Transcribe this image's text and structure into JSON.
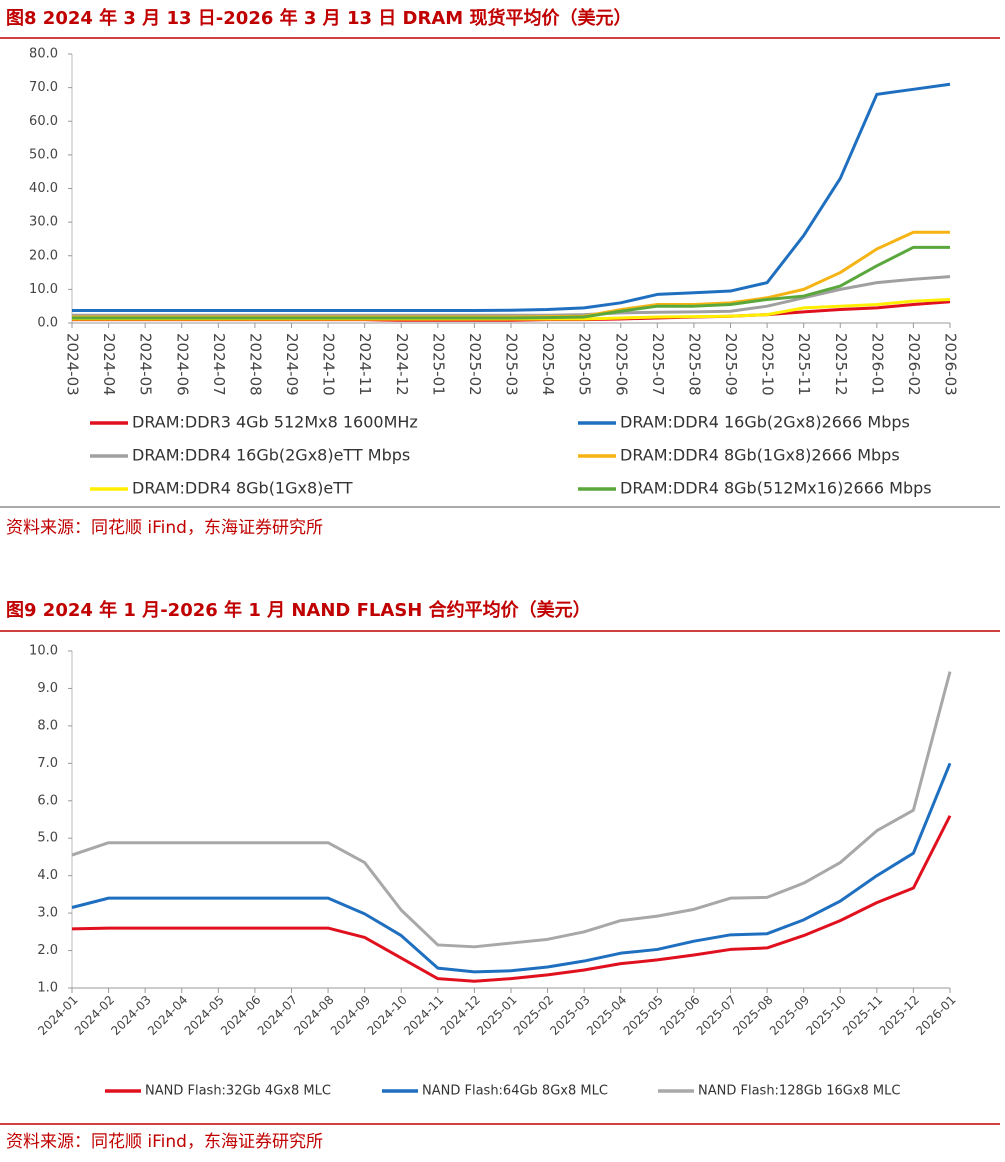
{
  "chart_data": [
    {
      "type": "line",
      "title": "图8  2024 年 3 月 13 日-2026 年 3 月 13 日 DRAM 现货平均价（美元）",
      "source": "资料来源：同花顺 iFind，东海证券研究所",
      "categories": [
        "2024-03",
        "2024-04",
        "2024-05",
        "2024-06",
        "2024-07",
        "2024-08",
        "2024-09",
        "2024-10",
        "2024-11",
        "2024-12",
        "2025-01",
        "2025-02",
        "2025-03",
        "2025-04",
        "2025-05",
        "2025-06",
        "2025-07",
        "2025-08",
        "2025-09",
        "2025-10",
        "2025-11",
        "2025-12",
        "2026-01",
        "2026-02",
        "2026-03"
      ],
      "ylim": [
        0,
        80
      ],
      "yticks": [
        {
          "value": 0,
          "label": "0.0"
        },
        {
          "value": 10,
          "label": "10.0"
        },
        {
          "value": 20,
          "label": "20.0"
        },
        {
          "value": 30,
          "label": "30.0"
        },
        {
          "value": 40,
          "label": "40.0"
        },
        {
          "value": 50,
          "label": "50.0"
        },
        {
          "value": 60,
          "label": "60.0"
        },
        {
          "value": 70,
          "label": "70.0"
        },
        {
          "value": 80,
          "label": "80.0"
        }
      ],
      "series": [
        {
          "name": "DRAM:DDR3 4Gb 512Mx8 1600MHz",
          "color": "#e0101e",
          "values": [
            1,
            1,
            1,
            1,
            1,
            1,
            1,
            1,
            1,
            0.8,
            0.8,
            0.8,
            0.8,
            1,
            1,
            1.2,
            1.5,
            1.8,
            2,
            2.5,
            3.3,
            4,
            4.5,
            5.5,
            6.3
          ]
        },
        {
          "name": "DRAM:DDR4 16Gb(2Gx8)2666 Mbps",
          "color": "#1f6fc0",
          "values": [
            3.7,
            3.7,
            3.7,
            3.7,
            3.7,
            3.7,
            3.7,
            3.7,
            3.7,
            3.7,
            3.7,
            3.7,
            3.8,
            4,
            4.5,
            6,
            8.5,
            9,
            9.5,
            12,
            26,
            43,
            68,
            69.5,
            71
          ]
        },
        {
          "name": "DRAM:DDR4 16Gb(2Gx8)eTT Mbps",
          "color": "#a0a0a0",
          "values": [
            2.3,
            2.3,
            2.3,
            2.3,
            2.3,
            2.3,
            2.3,
            2.3,
            2.3,
            2.3,
            2.3,
            2.3,
            2.3,
            2.3,
            2.5,
            3,
            3.2,
            3.3,
            3.5,
            5,
            7.5,
            10,
            12,
            13,
            13.8
          ]
        },
        {
          "name": "DRAM:DDR4 8Gb(1Gx8)2666 Mbps",
          "color": "#f5b414",
          "values": [
            1.8,
            1.8,
            1.8,
            1.8,
            1.8,
            1.8,
            1.8,
            1.8,
            1.8,
            1.8,
            1.8,
            1.8,
            1.8,
            1.9,
            2,
            4,
            5.5,
            5.5,
            6,
            7.5,
            10,
            15,
            22,
            27,
            27
          ]
        },
        {
          "name": "DRAM:DDR4 8Gb(1Gx8)eTT",
          "color": "#ffee00",
          "values": [
            1.2,
            1.2,
            1.2,
            1.2,
            1.2,
            1.2,
            1.2,
            1.2,
            1.2,
            1.2,
            1.2,
            1.2,
            1.2,
            1.2,
            1.2,
            1.5,
            1.8,
            1.9,
            2,
            2.5,
            4.5,
            5,
            5.5,
            6.5,
            7
          ]
        },
        {
          "name": "DRAM:DDR4 8Gb(512Mx16)2666 Mbps",
          "color": "#5aa83c",
          "values": [
            1.5,
            1.5,
            1.5,
            1.5,
            1.5,
            1.5,
            1.5,
            1.5,
            1.5,
            1.5,
            1.5,
            1.5,
            1.5,
            1.6,
            1.8,
            3.5,
            5,
            5,
            5.5,
            7,
            8,
            11,
            17,
            22.5,
            22.5
          ]
        }
      ]
    },
    {
      "type": "line",
      "title": "图9  2024 年 1 月-2026 年 1 月 NAND FLASH 合约平均价（美元）",
      "source": "资料来源：同花顺 iFind，东海证券研究所",
      "categories": [
        "2024-01",
        "2024-02",
        "2024-03",
        "2024-04",
        "2024-05",
        "2024-06",
        "2024-07",
        "2024-08",
        "2024-09",
        "2024-10",
        "2024-11",
        "2024-12",
        "2025-01",
        "2025-02",
        "2025-03",
        "2025-04",
        "2025-05",
        "2025-06",
        "2025-07",
        "2025-08",
        "2025-09",
        "2025-10",
        "2025-11",
        "2025-12",
        "2026-01"
      ],
      "ylim": [
        1,
        10
      ],
      "yticks": [
        {
          "value": 1,
          "label": "1.0"
        },
        {
          "value": 2,
          "label": "2.0"
        },
        {
          "value": 3,
          "label": "3.0"
        },
        {
          "value": 4,
          "label": "4.0"
        },
        {
          "value": 5,
          "label": "5.0"
        },
        {
          "value": 6,
          "label": "6.0"
        },
        {
          "value": 7,
          "label": "7.0"
        },
        {
          "value": 8,
          "label": "8.0"
        },
        {
          "value": 9,
          "label": "9.0"
        },
        {
          "value": 10,
          "label": "10.0"
        }
      ],
      "series": [
        {
          "name": "NAND Flash:32Gb 4Gx8 MLC",
          "color": "#e0101e",
          "values": [
            2.58,
            2.6,
            2.6,
            2.6,
            2.6,
            2.6,
            2.6,
            2.6,
            2.35,
            1.8,
            1.25,
            1.18,
            1.25,
            1.35,
            1.48,
            1.65,
            1.75,
            1.88,
            2.03,
            2.07,
            2.4,
            2.8,
            3.28,
            3.67,
            5.6
          ]
        },
        {
          "name": "NAND Flash:64Gb 8Gx8 MLC",
          "color": "#1f6fc0",
          "values": [
            3.15,
            3.4,
            3.4,
            3.4,
            3.4,
            3.4,
            3.4,
            3.4,
            2.98,
            2.4,
            1.53,
            1.43,
            1.46,
            1.56,
            1.72,
            1.93,
            2.03,
            2.25,
            2.42,
            2.45,
            2.82,
            3.32,
            4.0,
            4.6,
            7.0
          ]
        },
        {
          "name": "NAND Flash:128Gb 16Gx8 MLC",
          "color": "#a8a8a8",
          "values": [
            4.55,
            4.88,
            4.88,
            4.88,
            4.88,
            4.88,
            4.88,
            4.88,
            4.35,
            3.08,
            2.15,
            2.1,
            2.2,
            2.3,
            2.5,
            2.8,
            2.92,
            3.1,
            3.4,
            3.42,
            3.8,
            4.35,
            5.2,
            5.75,
            9.45
          ]
        }
      ]
    }
  ]
}
